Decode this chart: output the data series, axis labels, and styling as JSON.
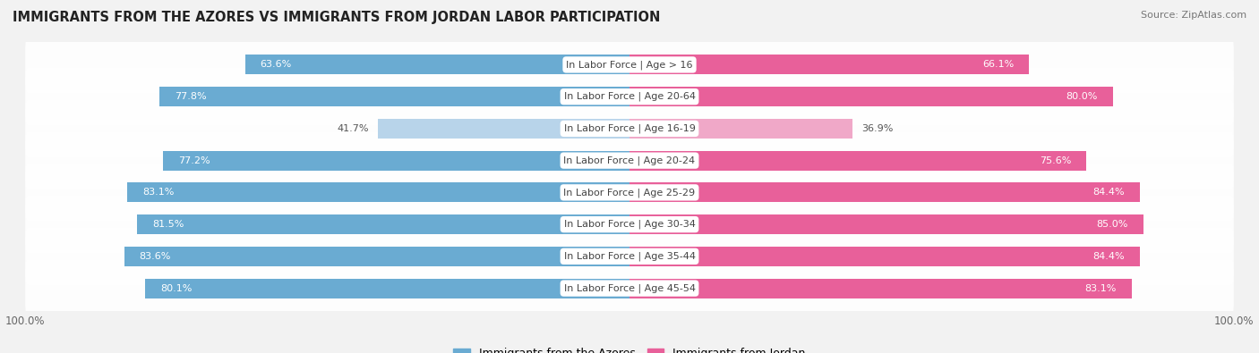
{
  "title": "IMMIGRANTS FROM THE AZORES VS IMMIGRANTS FROM JORDAN LABOR PARTICIPATION",
  "source": "Source: ZipAtlas.com",
  "categories": [
    "In Labor Force | Age > 16",
    "In Labor Force | Age 20-64",
    "In Labor Force | Age 16-19",
    "In Labor Force | Age 20-24",
    "In Labor Force | Age 25-29",
    "In Labor Force | Age 30-34",
    "In Labor Force | Age 35-44",
    "In Labor Force | Age 45-54"
  ],
  "azores_values": [
    63.6,
    77.8,
    41.7,
    77.2,
    83.1,
    81.5,
    83.6,
    80.1
  ],
  "jordan_values": [
    66.1,
    80.0,
    36.9,
    75.6,
    84.4,
    85.0,
    84.4,
    83.1
  ],
  "azores_color": "#6aabd2",
  "azores_light_color": "#b8d4ea",
  "jordan_color": "#e8609a",
  "jordan_light_color": "#f0a8c8",
  "bar_height": 0.62,
  "background_color": "#f2f2f2",
  "max_val": 100.0,
  "legend_azores": "Immigrants from the Azores",
  "legend_jordan": "Immigrants from Jordan",
  "light_threshold": 55.0
}
